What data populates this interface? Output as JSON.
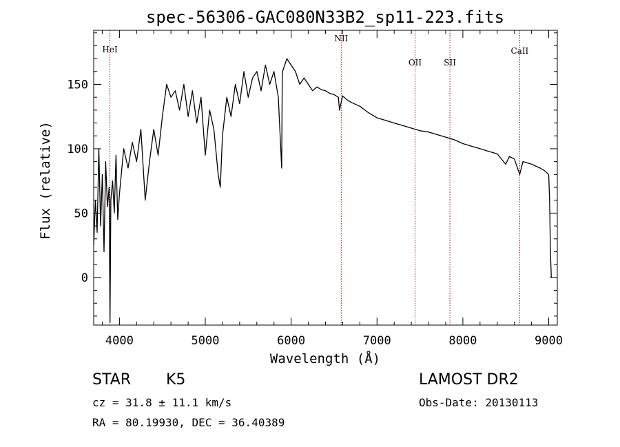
{
  "chart_data": {
    "type": "line",
    "title": "spec-56306-GAC080N33B2_sp11-223.fits",
    "xlabel": "Wavelength (Å)",
    "ylabel": "Flux (relative)",
    "xlim": [
      3700,
      9100
    ],
    "ylim": [
      -37,
      192
    ],
    "xticks": [
      4000,
      5000,
      6000,
      7000,
      8000,
      9000
    ],
    "yticks": [
      0,
      50,
      100,
      150
    ],
    "grid": false,
    "lines": [
      {
        "label": "HeI",
        "x": 3889
      },
      {
        "label": "NII",
        "x": 6583
      },
      {
        "label": "OII",
        "x": 7443
      },
      {
        "label": "SII",
        "x": 7849
      },
      {
        "label": "CaII",
        "x": 8662
      }
    ],
    "series": [
      {
        "x": [
          3700,
          3720,
          3740,
          3760,
          3780,
          3800,
          3820,
          3840,
          3860,
          3880,
          3890,
          3900,
          3920,
          3940,
          3960,
          3980,
          4000,
          4050,
          4100,
          4150,
          4200,
          4250,
          4300,
          4350,
          4400,
          4450,
          4500,
          4550,
          4600,
          4650,
          4700,
          4750,
          4800,
          4850,
          4900,
          4950,
          5000,
          5050,
          5100,
          5150,
          5175,
          5200,
          5250,
          5300,
          5350,
          5400,
          5450,
          5500,
          5550,
          5600,
          5650,
          5700,
          5750,
          5800,
          5850,
          5890,
          5896,
          5900,
          5950,
          6000,
          6050,
          6100,
          6150,
          6200,
          6250,
          6300,
          6350,
          6400,
          6450,
          6500,
          6550,
          6563,
          6600,
          6650,
          6700,
          6800,
          6900,
          7000,
          7100,
          7200,
          7300,
          7400,
          7500,
          7600,
          7700,
          7800,
          7900,
          8000,
          8100,
          8200,
          8300,
          8400,
          8498,
          8542,
          8600,
          8662,
          8700,
          8800,
          8900,
          8950,
          9000,
          9010,
          9020,
          9030
        ],
        "y": [
          25,
          60,
          35,
          100,
          40,
          80,
          20,
          90,
          55,
          70,
          -35,
          60,
          75,
          50,
          95,
          45,
          65,
          100,
          85,
          105,
          90,
          115,
          60,
          90,
          115,
          95,
          125,
          150,
          140,
          145,
          130,
          150,
          125,
          145,
          120,
          140,
          95,
          130,
          115,
          80,
          70,
          110,
          140,
          125,
          150,
          135,
          160,
          140,
          155,
          160,
          145,
          165,
          150,
          160,
          140,
          85,
          155,
          160,
          170,
          165,
          160,
          150,
          155,
          150,
          145,
          148,
          146,
          145,
          143,
          142,
          140,
          130,
          141,
          138,
          136,
          133,
          128,
          124,
          122,
          120,
          118,
          116,
          114,
          113,
          111,
          109,
          107,
          104,
          102,
          100,
          98,
          96,
          88,
          94,
          92,
          80,
          90,
          88,
          85,
          83,
          80,
          60,
          20,
          0
        ]
      }
    ]
  },
  "footer": {
    "object": "STAR",
    "subclass": "K5",
    "cz": "cz = 31.8 ± 11.1 km/s",
    "radec": "RA =  80.19930, DEC =  36.40389",
    "survey": "LAMOST DR2",
    "obsdate": "Obs-Date: 20130113"
  }
}
